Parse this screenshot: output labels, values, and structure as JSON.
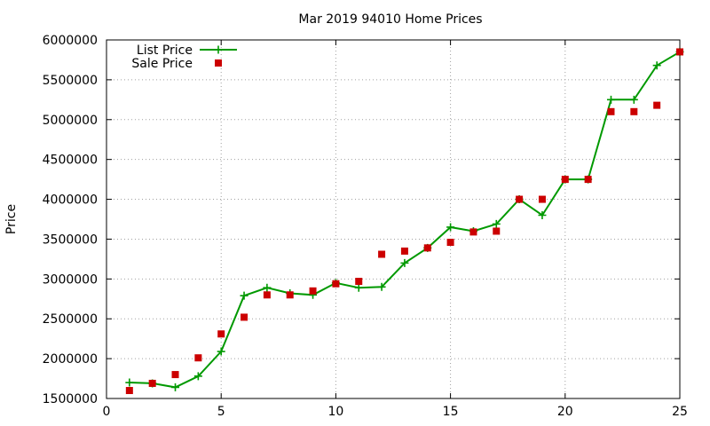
{
  "chart_data": {
    "type": "line",
    "title": "Mar 2019 94010 Home Prices",
    "xlabel": "",
    "ylabel": "Price",
    "xlim": [
      0,
      25
    ],
    "ylim": [
      1500000,
      6000000
    ],
    "x_ticks": [
      0,
      5,
      10,
      15,
      20,
      25
    ],
    "y_ticks": [
      1500000,
      2000000,
      2500000,
      3000000,
      3500000,
      4000000,
      4500000,
      5000000,
      5500000,
      6000000
    ],
    "grid": true,
    "legend_position": "top-left",
    "series": [
      {
        "name": "List Price",
        "kind": "line-plus",
        "color": "#009900",
        "points": [
          [
            1,
            1700000
          ],
          [
            2,
            1690000
          ],
          [
            3,
            1640000
          ],
          [
            4,
            1780000
          ],
          [
            5,
            2090000
          ],
          [
            6,
            2790000
          ],
          [
            7,
            2890000
          ],
          [
            8,
            2820000
          ],
          [
            9,
            2800000
          ],
          [
            10,
            2950000
          ],
          [
            11,
            2890000
          ],
          [
            12,
            2900000
          ],
          [
            13,
            3200000
          ],
          [
            14,
            3390000
          ],
          [
            15,
            3650000
          ],
          [
            16,
            3600000
          ],
          [
            17,
            3690000
          ],
          [
            18,
            4000000
          ],
          [
            19,
            3800000
          ],
          [
            20,
            4250000
          ],
          [
            21,
            4250000
          ],
          [
            22,
            5250000
          ],
          [
            23,
            5250000
          ],
          [
            24,
            5680000
          ],
          [
            25,
            5850000
          ]
        ]
      },
      {
        "name": "Sale Price",
        "kind": "square",
        "color": "#cc0000",
        "points": [
          [
            1,
            1600000
          ],
          [
            2,
            1690000
          ],
          [
            3,
            1800000
          ],
          [
            4,
            2010000
          ],
          [
            5,
            2310000
          ],
          [
            6,
            2520000
          ],
          [
            7,
            2800000
          ],
          [
            8,
            2800000
          ],
          [
            9,
            2850000
          ],
          [
            10,
            2940000
          ],
          [
            11,
            2970000
          ],
          [
            12,
            3310000
          ],
          [
            13,
            3350000
          ],
          [
            14,
            3390000
          ],
          [
            15,
            3460000
          ],
          [
            16,
            3590000
          ],
          [
            17,
            3600000
          ],
          [
            18,
            4000000
          ],
          [
            19,
            4000000
          ],
          [
            20,
            4250000
          ],
          [
            21,
            4250000
          ],
          [
            22,
            5100000
          ],
          [
            23,
            5100000
          ],
          [
            24,
            5180000
          ],
          [
            25,
            5850000
          ]
        ]
      }
    ]
  }
}
